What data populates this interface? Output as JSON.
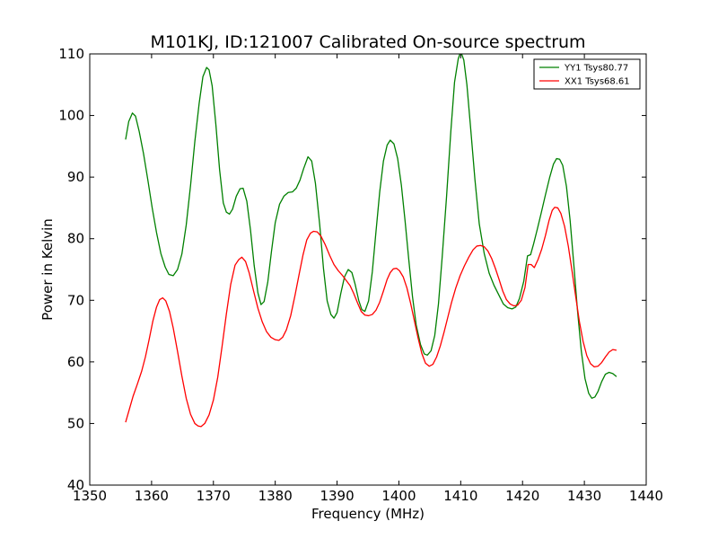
{
  "chart_data": {
    "type": "line",
    "title": "M101KJ, ID:121007 Calibrated On-source spectrum",
    "xlabel": "Frequency (MHz)",
    "ylabel": "Power in Kelvin",
    "xlim": [
      1350,
      1440
    ],
    "ylim": [
      40,
      110
    ],
    "xticks": [
      1350,
      1360,
      1370,
      1380,
      1390,
      1400,
      1410,
      1420,
      1430,
      1440
    ],
    "yticks": [
      40,
      50,
      60,
      70,
      80,
      90,
      100,
      110
    ],
    "grid": false,
    "legend_position": "top-right",
    "series": [
      {
        "name": "YY1 Tsys80.77",
        "color": "#008000",
        "points": [
          [
            1355.8,
            96.1
          ],
          [
            1356.3,
            99.0
          ],
          [
            1356.9,
            100.4
          ],
          [
            1357.4,
            99.9
          ],
          [
            1358.0,
            97.4
          ],
          [
            1358.7,
            93.8
          ],
          [
            1359.4,
            89.5
          ],
          [
            1360.1,
            85.0
          ],
          [
            1360.8,
            81.0
          ],
          [
            1361.5,
            77.6
          ],
          [
            1362.2,
            75.4
          ],
          [
            1362.8,
            74.2
          ],
          [
            1363.5,
            74.0
          ],
          [
            1364.2,
            75.0
          ],
          [
            1364.9,
            77.5
          ],
          [
            1365.6,
            82.2
          ],
          [
            1366.3,
            88.6
          ],
          [
            1367.0,
            95.8
          ],
          [
            1367.7,
            102.0
          ],
          [
            1368.3,
            106.3
          ],
          [
            1368.9,
            107.8
          ],
          [
            1369.3,
            107.4
          ],
          [
            1369.8,
            104.8
          ],
          [
            1370.4,
            98.5
          ],
          [
            1371.0,
            91.2
          ],
          [
            1371.6,
            85.8
          ],
          [
            1372.1,
            84.3
          ],
          [
            1372.6,
            84.0
          ],
          [
            1373.1,
            84.8
          ],
          [
            1373.7,
            86.9
          ],
          [
            1374.3,
            88.1
          ],
          [
            1374.8,
            88.2
          ],
          [
            1375.4,
            86.1
          ],
          [
            1376.0,
            81.4
          ],
          [
            1376.6,
            75.6
          ],
          [
            1377.2,
            71.2
          ],
          [
            1377.7,
            69.3
          ],
          [
            1378.2,
            69.8
          ],
          [
            1378.8,
            73.0
          ],
          [
            1379.4,
            78.0
          ],
          [
            1380.0,
            82.6
          ],
          [
            1380.7,
            85.6
          ],
          [
            1381.4,
            86.9
          ],
          [
            1382.1,
            87.5
          ],
          [
            1382.8,
            87.6
          ],
          [
            1383.4,
            88.2
          ],
          [
            1384.0,
            89.5
          ],
          [
            1384.6,
            91.4
          ],
          [
            1385.3,
            93.3
          ],
          [
            1385.9,
            92.6
          ],
          [
            1386.5,
            89.0
          ],
          [
            1387.2,
            82.2
          ],
          [
            1387.8,
            75.2
          ],
          [
            1388.4,
            69.9
          ],
          [
            1389.0,
            67.7
          ],
          [
            1389.5,
            67.1
          ],
          [
            1390.0,
            68.0
          ],
          [
            1390.6,
            71.1
          ],
          [
            1391.2,
            73.8
          ],
          [
            1391.8,
            75.0
          ],
          [
            1392.4,
            74.5
          ],
          [
            1392.9,
            72.7
          ],
          [
            1393.5,
            70.0
          ],
          [
            1394.0,
            68.5
          ],
          [
            1394.5,
            68.2
          ],
          [
            1395.1,
            69.9
          ],
          [
            1395.7,
            74.6
          ],
          [
            1396.3,
            81.2
          ],
          [
            1396.9,
            87.6
          ],
          [
            1397.5,
            92.6
          ],
          [
            1398.1,
            95.2
          ],
          [
            1398.6,
            96.0
          ],
          [
            1399.2,
            95.4
          ],
          [
            1399.8,
            93.0
          ],
          [
            1400.4,
            88.7
          ],
          [
            1401.0,
            82.9
          ],
          [
            1401.6,
            76.6
          ],
          [
            1402.2,
            70.6
          ],
          [
            1402.8,
            66.0
          ],
          [
            1403.5,
            62.8
          ],
          [
            1404.1,
            61.3
          ],
          [
            1404.6,
            61.1
          ],
          [
            1405.2,
            61.8
          ],
          [
            1405.8,
            64.3
          ],
          [
            1406.4,
            69.4
          ],
          [
            1407.0,
            77.0
          ],
          [
            1407.7,
            86.7
          ],
          [
            1408.4,
            97.4
          ],
          [
            1409.0,
            105.4
          ],
          [
            1409.6,
            109.2
          ],
          [
            1410.0,
            110.4
          ],
          [
            1410.5,
            109.0
          ],
          [
            1411.0,
            105.0
          ],
          [
            1411.6,
            98.0
          ],
          [
            1412.3,
            89.6
          ],
          [
            1413.0,
            82.4
          ],
          [
            1413.8,
            77.6
          ],
          [
            1414.6,
            74.4
          ],
          [
            1415.4,
            72.4
          ],
          [
            1416.2,
            70.8
          ],
          [
            1416.9,
            69.4
          ],
          [
            1417.6,
            68.8
          ],
          [
            1418.3,
            68.6
          ],
          [
            1418.9,
            68.9
          ],
          [
            1419.5,
            70.3
          ],
          [
            1420.2,
            73.1
          ],
          [
            1420.8,
            77.2
          ],
          [
            1421.3,
            77.4
          ],
          [
            1421.8,
            79.2
          ],
          [
            1422.4,
            81.6
          ],
          [
            1423.0,
            84.1
          ],
          [
            1423.7,
            87.1
          ],
          [
            1424.4,
            90.0
          ],
          [
            1425.0,
            92.1
          ],
          [
            1425.5,
            93.0
          ],
          [
            1426.0,
            92.9
          ],
          [
            1426.5,
            91.9
          ],
          [
            1427.1,
            88.5
          ],
          [
            1427.7,
            82.9
          ],
          [
            1428.3,
            75.7
          ],
          [
            1428.9,
            68.2
          ],
          [
            1429.5,
            61.8
          ],
          [
            1430.1,
            57.3
          ],
          [
            1430.7,
            54.9
          ],
          [
            1431.2,
            54.1
          ],
          [
            1431.7,
            54.3
          ],
          [
            1432.2,
            55.2
          ],
          [
            1432.8,
            56.8
          ],
          [
            1433.4,
            58.0
          ],
          [
            1434.0,
            58.3
          ],
          [
            1434.6,
            58.1
          ],
          [
            1435.2,
            57.6
          ]
        ]
      },
      {
        "name": "XX1 Tsys68.61",
        "color": "#ff0000",
        "points": [
          [
            1355.8,
            50.2
          ],
          [
            1356.4,
            52.3
          ],
          [
            1357.0,
            54.4
          ],
          [
            1357.7,
            56.4
          ],
          [
            1358.4,
            58.5
          ],
          [
            1359.0,
            60.8
          ],
          [
            1359.6,
            63.6
          ],
          [
            1360.2,
            66.6
          ],
          [
            1360.8,
            68.9
          ],
          [
            1361.3,
            70.1
          ],
          [
            1361.8,
            70.4
          ],
          [
            1362.3,
            69.9
          ],
          [
            1362.9,
            68.2
          ],
          [
            1363.5,
            65.5
          ],
          [
            1364.2,
            61.7
          ],
          [
            1364.9,
            57.7
          ],
          [
            1365.6,
            54.1
          ],
          [
            1366.3,
            51.5
          ],
          [
            1367.0,
            50.0
          ],
          [
            1367.5,
            49.6
          ],
          [
            1368.0,
            49.5
          ],
          [
            1368.6,
            50.0
          ],
          [
            1369.3,
            51.4
          ],
          [
            1370.0,
            53.8
          ],
          [
            1370.7,
            57.5
          ],
          [
            1371.4,
            62.5
          ],
          [
            1372.1,
            67.8
          ],
          [
            1372.8,
            72.6
          ],
          [
            1373.5,
            75.7
          ],
          [
            1374.1,
            76.6
          ],
          [
            1374.6,
            77.0
          ],
          [
            1375.2,
            76.3
          ],
          [
            1375.8,
            74.4
          ],
          [
            1376.5,
            71.5
          ],
          [
            1377.2,
            68.7
          ],
          [
            1377.9,
            66.5
          ],
          [
            1378.6,
            64.9
          ],
          [
            1379.3,
            64.0
          ],
          [
            1380.0,
            63.6
          ],
          [
            1380.6,
            63.5
          ],
          [
            1381.2,
            64.0
          ],
          [
            1381.8,
            65.2
          ],
          [
            1382.5,
            67.5
          ],
          [
            1383.2,
            70.8
          ],
          [
            1383.9,
            74.4
          ],
          [
            1384.5,
            77.4
          ],
          [
            1385.1,
            79.8
          ],
          [
            1385.7,
            80.9
          ],
          [
            1386.2,
            81.2
          ],
          [
            1386.8,
            81.1
          ],
          [
            1387.4,
            80.4
          ],
          [
            1388.1,
            79.0
          ],
          [
            1388.8,
            77.3
          ],
          [
            1389.5,
            75.8
          ],
          [
            1390.2,
            74.8
          ],
          [
            1390.9,
            74.0
          ],
          [
            1391.5,
            73.2
          ],
          [
            1392.1,
            72.4
          ],
          [
            1392.7,
            71.1
          ],
          [
            1393.3,
            69.6
          ],
          [
            1393.9,
            68.2
          ],
          [
            1394.5,
            67.6
          ],
          [
            1395.1,
            67.5
          ],
          [
            1395.7,
            67.7
          ],
          [
            1396.3,
            68.4
          ],
          [
            1396.9,
            69.7
          ],
          [
            1397.5,
            71.5
          ],
          [
            1398.1,
            73.4
          ],
          [
            1398.6,
            74.5
          ],
          [
            1399.1,
            75.1
          ],
          [
            1399.6,
            75.2
          ],
          [
            1400.1,
            74.8
          ],
          [
            1400.7,
            73.8
          ],
          [
            1401.3,
            72.0
          ],
          [
            1401.9,
            69.5
          ],
          [
            1402.5,
            66.7
          ],
          [
            1403.1,
            63.9
          ],
          [
            1403.7,
            61.4
          ],
          [
            1404.3,
            59.8
          ],
          [
            1404.9,
            59.3
          ],
          [
            1405.5,
            59.6
          ],
          [
            1406.1,
            60.8
          ],
          [
            1406.7,
            62.6
          ],
          [
            1407.3,
            64.8
          ],
          [
            1407.9,
            67.2
          ],
          [
            1408.5,
            69.6
          ],
          [
            1409.2,
            72.0
          ],
          [
            1409.9,
            74.0
          ],
          [
            1410.6,
            75.6
          ],
          [
            1411.3,
            77.0
          ],
          [
            1412.0,
            78.2
          ],
          [
            1412.6,
            78.8
          ],
          [
            1413.2,
            78.9
          ],
          [
            1413.8,
            78.7
          ],
          [
            1414.4,
            78.0
          ],
          [
            1415.0,
            76.8
          ],
          [
            1415.6,
            75.2
          ],
          [
            1416.2,
            73.4
          ],
          [
            1416.8,
            71.5
          ],
          [
            1417.4,
            70.1
          ],
          [
            1418.0,
            69.4
          ],
          [
            1418.6,
            69.1
          ],
          [
            1419.2,
            69.2
          ],
          [
            1419.8,
            70.0
          ],
          [
            1420.4,
            72.1
          ],
          [
            1420.9,
            75.8
          ],
          [
            1421.4,
            75.8
          ],
          [
            1421.9,
            75.3
          ],
          [
            1422.5,
            76.6
          ],
          [
            1423.1,
            78.3
          ],
          [
            1423.7,
            80.5
          ],
          [
            1424.3,
            83.0
          ],
          [
            1424.8,
            84.6
          ],
          [
            1425.2,
            85.1
          ],
          [
            1425.7,
            85.0
          ],
          [
            1426.2,
            84.1
          ],
          [
            1426.8,
            82.0
          ],
          [
            1427.4,
            78.8
          ],
          [
            1428.0,
            74.8
          ],
          [
            1428.6,
            70.6
          ],
          [
            1429.2,
            66.5
          ],
          [
            1429.8,
            63.3
          ],
          [
            1430.4,
            61.0
          ],
          [
            1431.0,
            59.7
          ],
          [
            1431.6,
            59.2
          ],
          [
            1432.2,
            59.3
          ],
          [
            1432.8,
            59.9
          ],
          [
            1433.4,
            60.8
          ],
          [
            1434.0,
            61.6
          ],
          [
            1434.6,
            62.0
          ],
          [
            1435.2,
            61.9
          ]
        ]
      }
    ]
  }
}
